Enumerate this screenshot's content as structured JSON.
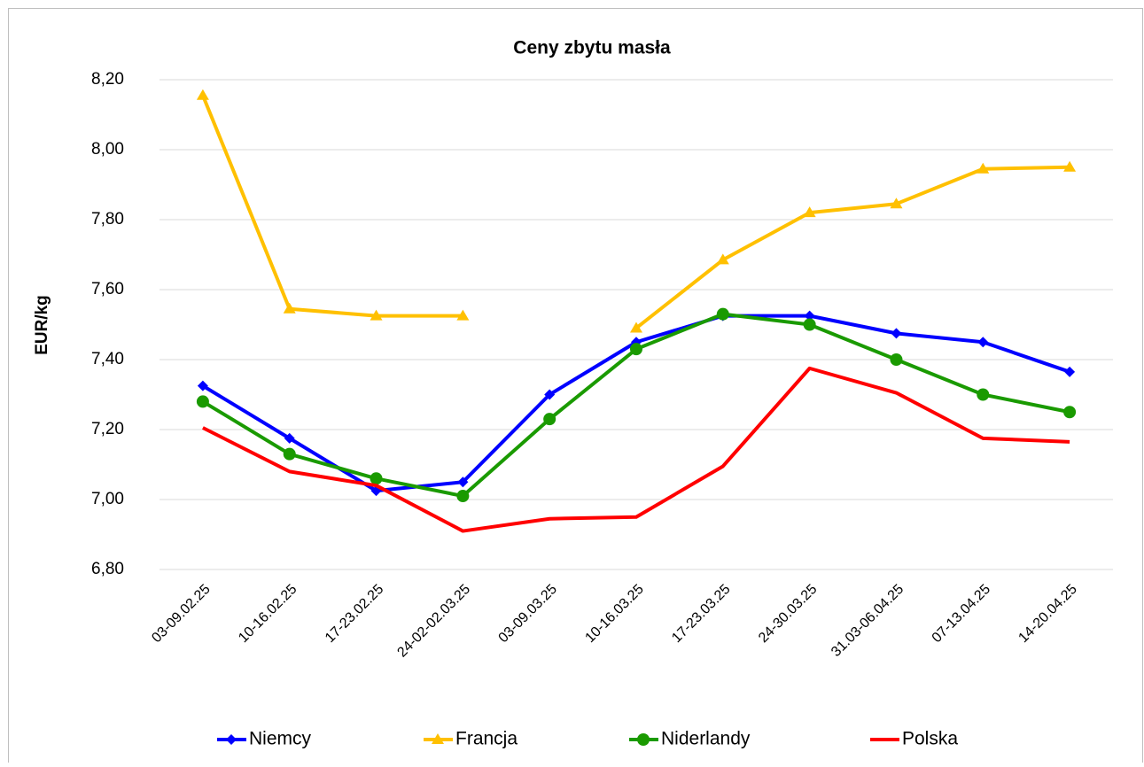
{
  "chart_data": {
    "type": "line",
    "title": "Ceny zbytu masła",
    "y_label": "EUR/kg",
    "categories": [
      "03-09.02.25",
      "10-16.02.25",
      "17-23.02.25",
      "24-02-02.03.25",
      "03-09.03.25",
      "10-16.03.25",
      "17-23.03.25",
      "24-30.03.25",
      "31.03-06.04.25",
      "07-13.04.25",
      "14-20.04.25"
    ],
    "series": [
      {
        "name": "Niemcy",
        "color": "#0000ff",
        "marker": "diamond",
        "values": [
          7.325,
          7.175,
          7.025,
          7.05,
          7.3,
          7.45,
          7.525,
          7.525,
          7.475,
          7.45,
          7.365
        ]
      },
      {
        "name": "Francja",
        "color": "#ffc000",
        "marker": "triangle",
        "values": [
          8.155,
          7.545,
          7.525,
          7.525,
          null,
          7.49,
          7.685,
          7.82,
          7.845,
          7.945,
          7.95
        ]
      },
      {
        "name": "Niderlandy",
        "color": "#1a9a00",
        "marker": "circle",
        "values": [
          7.28,
          7.13,
          7.06,
          7.01,
          7.23,
          7.43,
          7.53,
          7.5,
          7.4,
          7.3,
          7.25
        ]
      },
      {
        "name": "Polska",
        "color": "#ff0000",
        "marker": "none",
        "values": [
          7.205,
          7.08,
          7.04,
          6.91,
          6.945,
          6.95,
          7.095,
          7.375,
          7.305,
          7.175,
          7.165
        ]
      }
    ],
    "ylim": [
      6.8,
      8.2
    ],
    "yticks": [
      {
        "value": 6.8,
        "label": "6,80"
      },
      {
        "value": 7.0,
        "label": "7,00"
      },
      {
        "value": 7.2,
        "label": "7,20"
      },
      {
        "value": 7.4,
        "label": "7,40"
      },
      {
        "value": 7.6,
        "label": "7,60"
      },
      {
        "value": 7.8,
        "label": "7,80"
      },
      {
        "value": 8.0,
        "label": "8,00"
      },
      {
        "value": 8.2,
        "label": "8,20"
      }
    ],
    "grid": true,
    "legend": "bottom"
  }
}
